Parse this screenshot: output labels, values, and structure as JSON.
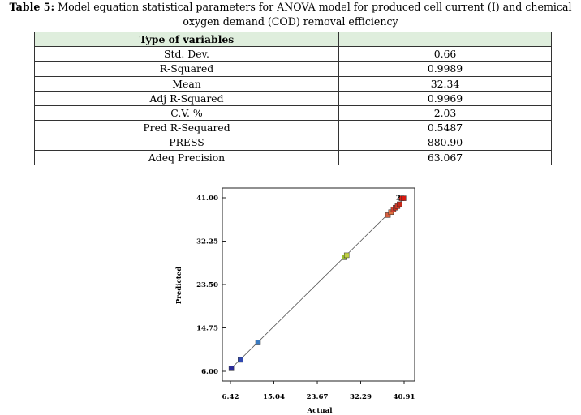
{
  "caption": {
    "label": "Table 5:",
    "text_line1": " Model equation statistical parameters for ANOVA model for produced cell current (I) and chemical",
    "text_line2": "oxygen demand (COD) removal efficiency"
  },
  "table": {
    "header": [
      "Type of variables",
      ""
    ],
    "rows": [
      [
        "Std. Dev.",
        "0.66"
      ],
      [
        "R-Squared",
        "0.9989"
      ],
      [
        "Mean",
        "32.34"
      ],
      [
        "Adj R-Squared",
        "0.9969"
      ],
      [
        "C.V. %",
        "2.03"
      ],
      [
        "Pred R-Sequared",
        "0.5487"
      ],
      [
        "PRESS",
        "880.90"
      ],
      [
        "Adeq Precision",
        "63.067"
      ]
    ]
  },
  "chart_data": {
    "type": "scatter",
    "xlabel": "Actual",
    "ylabel": "Predicted",
    "xlim": [
      6.42,
      40.91
    ],
    "ylim": [
      6.0,
      41.0
    ],
    "x_ticks": [
      "6.42",
      "15.04",
      "23.67",
      "32.29",
      "40.91"
    ],
    "y_ticks": [
      "6.00",
      "14.75",
      "23.50",
      "32.25",
      "41.00"
    ],
    "grid": false,
    "diagonal_line": true,
    "annotation": "2",
    "points": [
      {
        "x": 6.6,
        "y": 6.6,
        "color": "#2a2a9a"
      },
      {
        "x": 8.4,
        "y": 8.3,
        "color": "#3048b0"
      },
      {
        "x": 11.9,
        "y": 11.8,
        "color": "#3a7ac0"
      },
      {
        "x": 29.1,
        "y": 29.0,
        "color": "#9ac030"
      },
      {
        "x": 29.5,
        "y": 29.4,
        "color": "#c0d040"
      },
      {
        "x": 37.7,
        "y": 37.5,
        "color": "#d86040"
      },
      {
        "x": 38.3,
        "y": 38.1,
        "color": "#e07040"
      },
      {
        "x": 38.8,
        "y": 38.6,
        "color": "#d04030"
      },
      {
        "x": 39.2,
        "y": 39.0,
        "color": "#c83020"
      },
      {
        "x": 39.6,
        "y": 39.3,
        "color": "#d03828"
      },
      {
        "x": 40.0,
        "y": 39.7,
        "color": "#c82818"
      },
      {
        "x": 40.4,
        "y": 40.9,
        "color": "#e02010"
      },
      {
        "x": 40.8,
        "y": 40.9,
        "color": "#d81810"
      }
    ]
  }
}
